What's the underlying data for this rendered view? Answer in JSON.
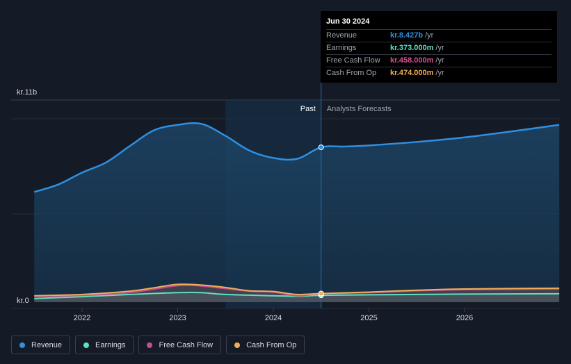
{
  "chart_data": {
    "type": "area",
    "y_axis": {
      "top_label": "kr.11b",
      "bottom_label": "kr.0",
      "ylim": [
        0,
        11
      ]
    },
    "x_axis": {
      "ticks": [
        "2022",
        "2023",
        "2024",
        "2025",
        "2026"
      ],
      "xlim": [
        2021.5,
        2026.99
      ]
    },
    "regions": {
      "past_label": "Past",
      "forecast_label": "Analysts Forecasts",
      "highlight_start": 2023.5,
      "divider": 2024.5
    },
    "series": [
      {
        "name": "Revenue",
        "color": "#2f8fe0",
        "points": [
          [
            2021.5,
            6.0
          ],
          [
            2021.75,
            6.4
          ],
          [
            2022.0,
            7.05
          ],
          [
            2022.25,
            7.6
          ],
          [
            2022.5,
            8.5
          ],
          [
            2022.75,
            9.35
          ],
          [
            2023.0,
            9.65
          ],
          [
            2023.25,
            9.7
          ],
          [
            2023.5,
            9.05
          ],
          [
            2023.75,
            8.25
          ],
          [
            2024.0,
            7.85
          ],
          [
            2024.25,
            7.8
          ],
          [
            2024.5,
            8.43
          ],
          [
            2024.75,
            8.47
          ],
          [
            2025.0,
            8.53
          ],
          [
            2025.5,
            8.72
          ],
          [
            2026.0,
            8.97
          ],
          [
            2026.5,
            9.3
          ],
          [
            2026.99,
            9.65
          ]
        ]
      },
      {
        "name": "Earnings",
        "color": "#5ee0c6",
        "points": [
          [
            2021.5,
            0.2
          ],
          [
            2022.0,
            0.3
          ],
          [
            2022.5,
            0.42
          ],
          [
            2023.0,
            0.52
          ],
          [
            2023.25,
            0.52
          ],
          [
            2023.5,
            0.42
          ],
          [
            2024.0,
            0.35
          ],
          [
            2024.25,
            0.32
          ],
          [
            2024.5,
            0.373
          ],
          [
            2025.0,
            0.4
          ],
          [
            2025.5,
            0.42
          ],
          [
            2026.0,
            0.44
          ],
          [
            2026.99,
            0.46
          ]
        ]
      },
      {
        "name": "Free Cash Flow",
        "color": "#c44f8d",
        "points": [
          [
            2021.5,
            0.32
          ],
          [
            2022.0,
            0.37
          ],
          [
            2022.5,
            0.52
          ],
          [
            2023.0,
            0.9
          ],
          [
            2023.25,
            0.88
          ],
          [
            2023.5,
            0.74
          ],
          [
            2023.75,
            0.6
          ],
          [
            2024.0,
            0.55
          ],
          [
            2024.25,
            0.35
          ],
          [
            2024.5,
            0.458
          ],
          [
            2025.0,
            0.52
          ],
          [
            2025.5,
            0.62
          ],
          [
            2026.0,
            0.68
          ],
          [
            2026.99,
            0.72
          ]
        ]
      },
      {
        "name": "Cash From Op",
        "color": "#f0ad58",
        "points": [
          [
            2021.5,
            0.35
          ],
          [
            2022.0,
            0.42
          ],
          [
            2022.5,
            0.6
          ],
          [
            2022.75,
            0.78
          ],
          [
            2023.0,
            0.97
          ],
          [
            2023.25,
            0.93
          ],
          [
            2023.5,
            0.8
          ],
          [
            2023.75,
            0.62
          ],
          [
            2024.0,
            0.58
          ],
          [
            2024.25,
            0.42
          ],
          [
            2024.5,
            0.474
          ],
          [
            2025.0,
            0.55
          ],
          [
            2025.5,
            0.65
          ],
          [
            2026.0,
            0.72
          ],
          [
            2026.99,
            0.76
          ]
        ]
      }
    ],
    "tooltip": {
      "date": "Jun 30 2024",
      "rows": [
        {
          "label": "Revenue",
          "value": "kr.8.427b",
          "unit": "/yr",
          "color": "#2f8fe0"
        },
        {
          "label": "Earnings",
          "value": "kr.373.000m",
          "unit": "/yr",
          "color": "#5ee0c6"
        },
        {
          "label": "Free Cash Flow",
          "value": "kr.458.000m",
          "unit": "/yr",
          "color": "#d64f93"
        },
        {
          "label": "Cash From Op",
          "value": "kr.474.000m",
          "unit": "/yr",
          "color": "#f0ad58"
        }
      ]
    }
  },
  "legend": [
    {
      "label": "Revenue",
      "color": "#2f8fe0"
    },
    {
      "label": "Earnings",
      "color": "#5ee0c6"
    },
    {
      "label": "Free Cash Flow",
      "color": "#c44f8d"
    },
    {
      "label": "Cash From Op",
      "color": "#f0ad58"
    }
  ]
}
